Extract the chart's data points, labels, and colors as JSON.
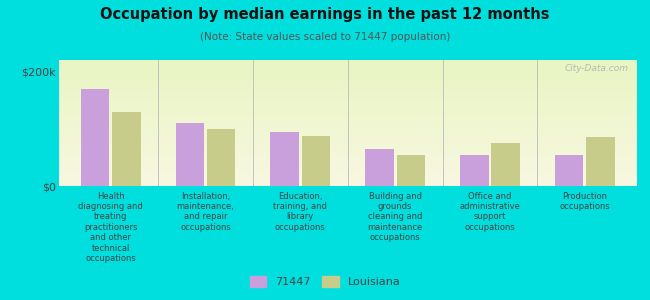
{
  "title": "Occupation by median earnings in the past 12 months",
  "subtitle": "(Note: State values scaled to 71447 population)",
  "background_color": "#00dede",
  "bar_color_71447": "#c9a0dc",
  "bar_color_louisiana": "#c8cc8a",
  "ylim": [
    0,
    220000
  ],
  "yticks": [
    0,
    200000
  ],
  "ytick_labels": [
    "$0",
    "$200k"
  ],
  "categories": [
    "Health\ndiagnosing and\ntreating\npractitioners\nand other\ntechnical\noccupations",
    "Installation,\nmaintenance,\nand repair\noccupations",
    "Education,\ntraining, and\nlibrary\noccupations",
    "Building and\ngrounds\ncleaning and\nmaintenance\noccupations",
    "Office and\nadministrative\nsupport\noccupations",
    "Production\noccupations"
  ],
  "values_71447": [
    170000,
    110000,
    95000,
    65000,
    55000,
    55000
  ],
  "values_louisiana": [
    130000,
    100000,
    88000,
    55000,
    75000,
    85000
  ],
  "legend_labels": [
    "71447",
    "Louisiana"
  ],
  "watermark": "City-Data.com"
}
